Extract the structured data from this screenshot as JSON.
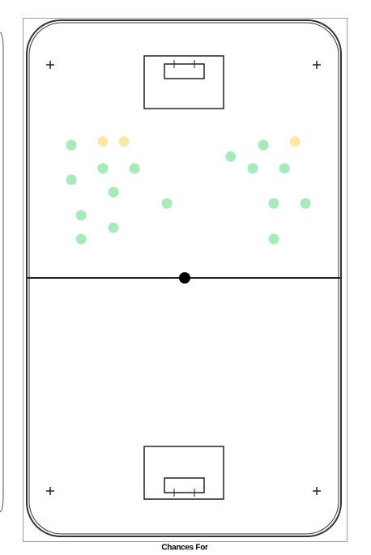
{
  "chart_data": {
    "type": "scatter",
    "title": "Chances For",
    "xlim": [
      0,
      100
    ],
    "ylim": [
      0,
      100
    ],
    "series": [
      {
        "color": "#a6ecbb",
        "x": [
          14.2,
          24.2,
          34.3,
          14.2,
          27.6,
          44.6,
          17.3,
          27.6,
          17.3,
          64.9,
          75.3,
          71.9,
          82.0,
          78.6,
          88.7,
          78.6
        ],
        "values": [
          75.8,
          71.3,
          71.3,
          69.1,
          66.7,
          64.5,
          62.2,
          59.8,
          57.6,
          73.6,
          75.8,
          71.3,
          71.3,
          64.5,
          64.5,
          57.6
        ]
      },
      {
        "color": "#fde8a6",
        "x": [
          24.2,
          30.9,
          85.3
        ],
        "values": [
          76.5,
          76.5,
          76.5
        ]
      }
    ]
  }
}
